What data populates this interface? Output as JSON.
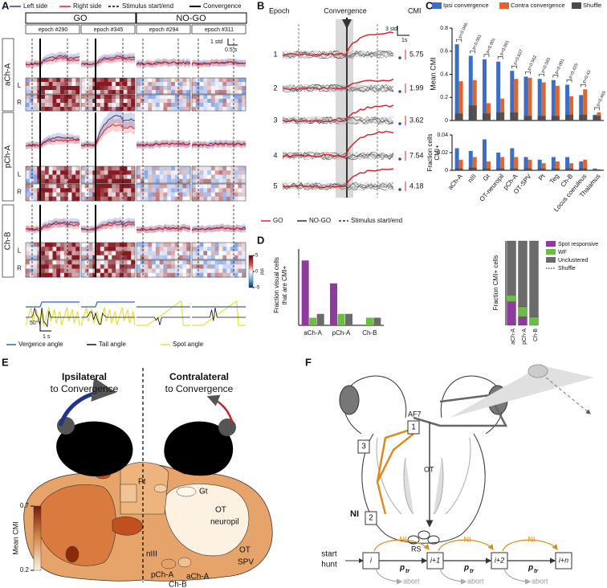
{
  "panel_labels": [
    "A",
    "B",
    "C",
    "D",
    "E",
    "F"
  ],
  "panel_a": {
    "legend": [
      "Left side",
      "Right side",
      "Stimulus start/end",
      "Convergence"
    ],
    "conditions": [
      "GO",
      "NO-GO"
    ],
    "epochs": [
      "epoch #290",
      "epoch #345",
      "epoch #294",
      "epoch #311"
    ],
    "regions": [
      "aCh-A",
      "pCh-A",
      "Ch-B"
    ],
    "sides": [
      [
        "L",
        "R"
      ],
      [
        "L",
        "R"
      ],
      [
        "L",
        "R"
      ]
    ],
    "scale_y": "1 std",
    "scale_x": "0.5 s",
    "colorbar": {
      "label": "std",
      "ticks": [
        5,
        0,
        -5
      ]
    },
    "behavior_scale_y": "50°",
    "behavior_scale_x": "1 s",
    "behavior_legend": [
      "Vergence angle",
      "Tail angle",
      "Spot angle"
    ]
  },
  "panel_b": {
    "headers": [
      "Epoch",
      "Convergence",
      "CMI"
    ],
    "epochs": [
      1,
      2,
      3,
      4,
      5
    ],
    "cmi": [
      5.75,
      1.99,
      3.62,
      7.54,
      4.18
    ],
    "scale_y": "3 std",
    "scale_x": "1s",
    "legend": [
      "GO",
      "NO-GO",
      "Stimulus start/end"
    ]
  },
  "chart_data": [
    {
      "type": "bar",
      "ylabel": "Mean CMI",
      "categories": [
        "aCh-A",
        "nIII",
        "Gt",
        "OT-neuropil",
        "pCh-A",
        "OT-SPV",
        "Pt",
        "Teg",
        "Ch-B",
        "Locus coeruleus",
        "Thalamus"
      ],
      "series": [
        {
          "name": "Ipsi convergence",
          "color": "#3b6fc6",
          "values": [
            0.66,
            0.56,
            0.53,
            0.51,
            0.43,
            0.38,
            0.36,
            0.35,
            0.31,
            0.22,
            0.05
          ]
        },
        {
          "name": "Contra convergence",
          "color": "#e2652d",
          "values": [
            0.34,
            0.35,
            0.15,
            0.19,
            0.36,
            0.37,
            0.33,
            0.3,
            0.21,
            0.27,
            0.07
          ]
        },
        {
          "name": "Shuffle",
          "color": "#4a4a4a",
          "values": [
            0.06,
            0.13,
            0.06,
            0.07,
            0.07,
            0.04,
            0.04,
            0.04,
            0.05,
            0.05,
            0.04
          ]
        }
      ],
      "annotations": [
        "p=0.046",
        "p<0.001",
        "p<0.001",
        "p<0.001",
        "p=0.837",
        "p=0.562",
        "p=0.043",
        "p<0.001",
        "p=0.425",
        "p=0.43",
        "p=0.469"
      ],
      "ylim": [
        0,
        0.8
      ],
      "yticks": [
        0,
        0.2,
        0.4,
        0.6,
        0.8
      ]
    },
    {
      "type": "bar",
      "ylabel": [
        "Fraction cells",
        "CMI+"
      ],
      "series": [
        {
          "color": "#3b6fc6",
          "values": [
            0.025,
            0.022,
            0.035,
            0.02,
            0.025,
            0.015,
            0.012,
            0.015,
            0.015,
            0.01,
            0.002
          ]
        },
        {
          "color": "#e2652d",
          "values": [
            0.012,
            0.015,
            0.01,
            0.015,
            0.015,
            0.012,
            0.008,
            0.01,
            0.008,
            0.012,
            0.001
          ]
        },
        {
          "color": "#4a4a4a",
          "values": [
            0.002,
            0.003,
            0.002,
            0.002,
            0.002,
            0.002,
            0.002,
            0.002,
            0.002,
            0.002,
            0.001
          ]
        }
      ],
      "ylim": [
        0,
        0.04
      ],
      "yticks": [
        0,
        0.02,
        0.04
      ]
    },
    {
      "type": "bar",
      "ylabel": [
        "Fraction visual cells",
        "that are CMI+"
      ],
      "categories": [
        "aCh-A",
        "pCh-A",
        "Ch-B"
      ],
      "series": [
        {
          "color": "#8e3c9c",
          "values": [
            0.17,
            0.11,
            0
          ]
        },
        {
          "color": "#6cbd45",
          "values": [
            0.02,
            0.03,
            0.02
          ]
        },
        {
          "color": "#6b6b6b",
          "values": [
            0.03,
            0.03,
            0.02
          ]
        }
      ],
      "ylim": [
        0,
        0.2
      ]
    },
    {
      "type": "stacked_bar",
      "ylabel": "Fraction CMI+ cells",
      "categories": [
        "aCh-A",
        "pCh-A",
        "Ch-B"
      ],
      "series": [
        {
          "name": "Spot responsive",
          "color": "#8e3c9c",
          "values": [
            0.28,
            0.1,
            0
          ]
        },
        {
          "name": "WF",
          "color": "#6cbd45",
          "values": [
            0.08,
            0.12,
            0.1
          ]
        },
        {
          "name": "Unclustered",
          "color": "#6b6b6b",
          "values": [
            0.64,
            0.78,
            0.9
          ]
        }
      ],
      "shuffle_legend": "Shuffle",
      "ylim": [
        0,
        1
      ]
    }
  ],
  "panel_e": {
    "headers": [
      [
        "Ipsilateral",
        "to Convergence"
      ],
      [
        "Contralateral",
        "to Convergence"
      ]
    ],
    "labels": [
      "Pt",
      "Gt",
      "OT",
      "neuropil",
      "OT",
      "SPV",
      "nIII",
      "pCh-A",
      "aCh-A",
      "Ch-B"
    ],
    "colorbar": {
      "label": "Mean CMI",
      "ticks": [
        0.7,
        0.2
      ]
    }
  },
  "panel_f": {
    "labels": [
      "AF7",
      "OT",
      "NI",
      "RS"
    ],
    "steps": [
      "1",
      "2",
      "3"
    ],
    "start": [
      "start",
      "hunt"
    ],
    "states": [
      "i",
      "i+1",
      "i+2",
      "i+n"
    ],
    "transition": [
      "p",
      "p",
      "p"
    ],
    "transition_sub": [
      "tr",
      "tr",
      "tr"
    ],
    "ni": [
      "NI",
      "NI",
      "NI"
    ],
    "abort": [
      "abort",
      "abort",
      "abort"
    ]
  }
}
